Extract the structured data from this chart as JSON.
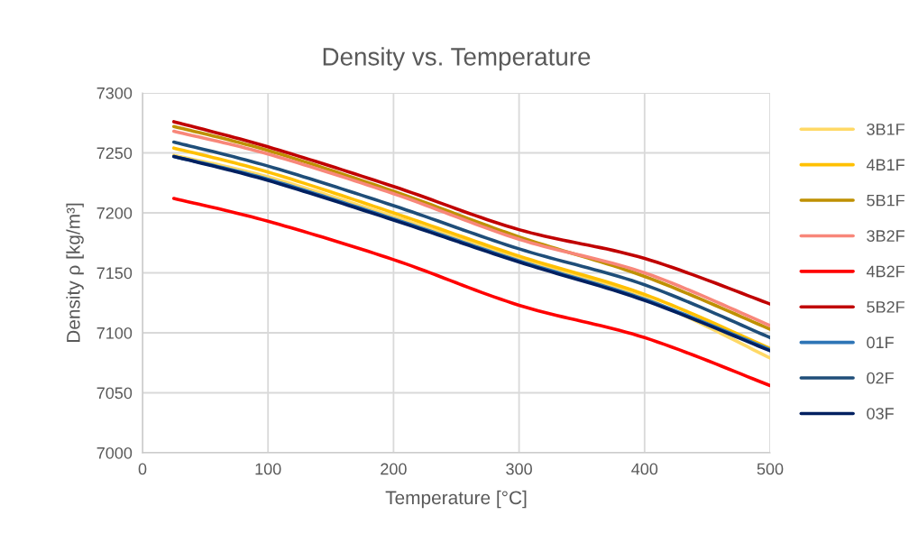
{
  "chart_data": {
    "type": "line",
    "title": "Density vs. Temperature",
    "xlabel": "Temperature [°C]",
    "ylabel": "Density ρ [kg/m³]",
    "x": [
      25,
      100,
      200,
      300,
      400,
      500
    ],
    "xlim": [
      0,
      500
    ],
    "xticks": [
      0,
      100,
      200,
      300,
      400,
      500
    ],
    "ylim": [
      7000,
      7300
    ],
    "yticks": [
      7000,
      7050,
      7100,
      7150,
      7200,
      7250,
      7300
    ],
    "grid": true,
    "legend": "right",
    "marker": "none",
    "line_style": "solid",
    "series": [
      {
        "name": "3B1F",
        "color": "#ffd966",
        "values": [
          7248,
          7230,
          7197,
          7162,
          7129,
          7079
        ]
      },
      {
        "name": "4B1F",
        "color": "#ffc000",
        "values": [
          7254,
          7234,
          7200,
          7164,
          7132,
          7087
        ]
      },
      {
        "name": "5B1F",
        "color": "#bf9000",
        "values": [
          7272,
          7252,
          7218,
          7180,
          7147,
          7103
        ]
      },
      {
        "name": "3B2F",
        "color": "#f8877a",
        "values": [
          7268,
          7249,
          7216,
          7178,
          7150,
          7106
        ]
      },
      {
        "name": "4B2F",
        "color": "#ff0000",
        "values": [
          7212,
          7193,
          7161,
          7123,
          7096,
          7056
        ]
      },
      {
        "name": "5B2F",
        "color": "#c00000",
        "values": [
          7276,
          7255,
          7222,
          7186,
          7162,
          7124
        ]
      },
      {
        "name": "01F",
        "color": "#2e75b6",
        "values": [
          7247,
          7228,
          7195,
          7160,
          7128,
          7086
        ]
      },
      {
        "name": "02F",
        "color": "#1f4e79",
        "values": [
          7259,
          7239,
          7206,
          7170,
          7140,
          7096
        ]
      },
      {
        "name": "03F",
        "color": "#002060",
        "values": [
          7247,
          7227,
          7194,
          7159,
          7127,
          7085
        ]
      }
    ]
  }
}
